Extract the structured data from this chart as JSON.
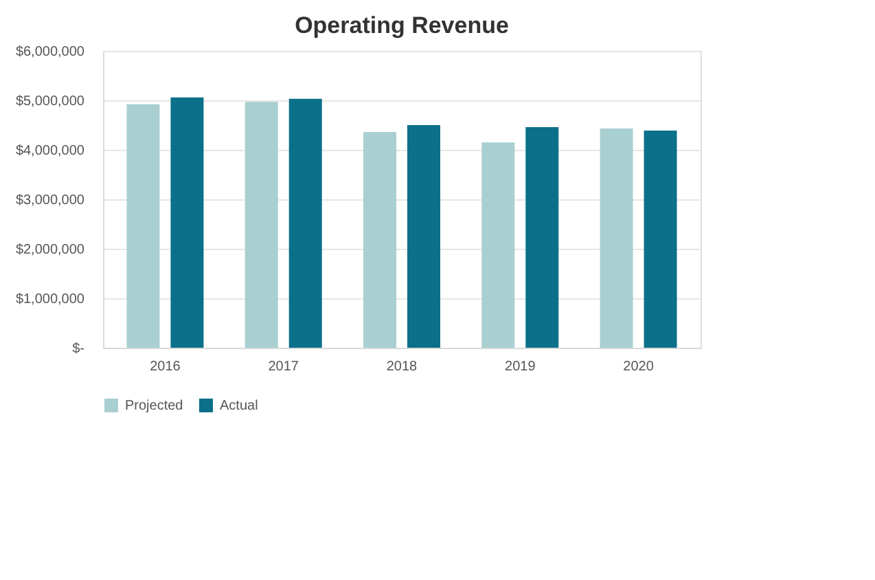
{
  "chart_data": {
    "type": "bar",
    "title": "Operating Revenue",
    "categories": [
      "2016",
      "2017",
      "2018",
      "2019",
      "2020"
    ],
    "series": [
      {
        "name": "Projected",
        "color": "#a9cfd0",
        "values": [
          4920000,
          4970000,
          4360000,
          4150000,
          4430000
        ]
      },
      {
        "name": "Actual",
        "color": "#0b7089",
        "values": [
          5060000,
          5030000,
          4500000,
          4460000,
          4390000
        ]
      }
    ],
    "ylim": [
      0,
      6000000
    ],
    "yticks": [
      {
        "value": 0,
        "label": "$-"
      },
      {
        "value": 1000000,
        "label": "$1,000,000"
      },
      {
        "value": 2000000,
        "label": "$2,000,000"
      },
      {
        "value": 3000000,
        "label": "$3,000,000"
      },
      {
        "value": 4000000,
        "label": "$4,000,000"
      },
      {
        "value": 5000000,
        "label": "$5,000,000"
      },
      {
        "value": 6000000,
        "label": "$6,000,000"
      }
    ],
    "grid": "y",
    "legend": "bottom"
  }
}
